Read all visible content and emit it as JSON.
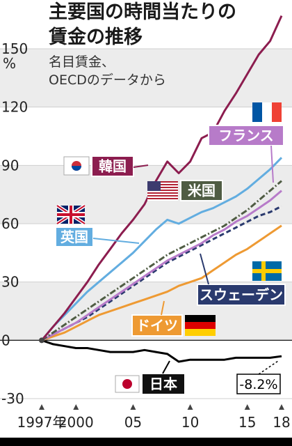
{
  "title_lines": [
    "主要国の時間当たりの",
    "賃金の推移"
  ],
  "subtitle_lines": [
    "名目賃金、",
    "OECDのデータから"
  ],
  "chart_data": {
    "type": "line",
    "ylabel": "%",
    "ylim": [
      -30,
      150
    ],
    "yticks": [
      150,
      120,
      90,
      60,
      30,
      0,
      -30
    ],
    "ytick_labels": [
      "150",
      "120",
      "90",
      "60",
      "30",
      "0",
      "-30"
    ],
    "xlim": [
      1997,
      2018
    ],
    "xtick_labels": [
      {
        "x": 1997,
        "label": "1997年"
      },
      {
        "x": 2000,
        "label": "2000"
      },
      {
        "x": 2005,
        "label": "05"
      },
      {
        "x": 2010,
        "label": "10"
      },
      {
        "x": 2015,
        "label": "15"
      },
      {
        "x": 2018,
        "label": "18"
      }
    ],
    "x": [
      1997,
      1998,
      1999,
      2000,
      2001,
      2002,
      2003,
      2004,
      2005,
      2006,
      2007,
      2008,
      2009,
      2010,
      2011,
      2012,
      2013,
      2014,
      2015,
      2016,
      2017,
      2018
    ],
    "series": [
      {
        "name": "韓国",
        "color": "#8c1d4f",
        "dash": "",
        "width": 3,
        "values": [
          0,
          7,
          14,
          22,
          30,
          39,
          47,
          55,
          62,
          70,
          82,
          92,
          86,
          92,
          104,
          107,
          118,
          127,
          137,
          147,
          154,
          167
        ]
      },
      {
        "name": "英国",
        "color": "#62ade0",
        "dash": "",
        "width": 3,
        "values": [
          0,
          7,
          13,
          19,
          25,
          30,
          35,
          40,
          45,
          51,
          57,
          62,
          60,
          63,
          66,
          68,
          71,
          74,
          78,
          83,
          88,
          94
        ]
      },
      {
        "name": "米国",
        "color": "#4f5c43",
        "dash": "9 3 2 3",
        "width": 3,
        "values": [
          0,
          4,
          8,
          12,
          16,
          20,
          24,
          28,
          32,
          36,
          40,
          44,
          47,
          50,
          53,
          56,
          59,
          63,
          67,
          72,
          77,
          82
        ]
      },
      {
        "name": "フランス",
        "color": "#b77bc9",
        "dash": "",
        "width": 3,
        "values": [
          0,
          3,
          6,
          9,
          13,
          17,
          21,
          25,
          29,
          33,
          37,
          41,
          44,
          47,
          50,
          54,
          57,
          61,
          64,
          68,
          72,
          77
        ]
      },
      {
        "name": "スウェーデン",
        "color": "#2a3a6e",
        "dash": "7 4",
        "width": 3,
        "values": [
          0,
          3,
          6,
          9,
          12,
          16,
          20,
          24,
          28,
          32,
          36,
          40,
          43,
          46,
          49,
          52,
          55,
          58,
          61,
          64,
          66,
          69
        ]
      },
      {
        "name": "ドイツ",
        "color": "#ee9a33",
        "dash": "",
        "width": 3,
        "values": [
          0,
          2,
          4,
          7,
          10,
          13,
          15,
          17,
          19,
          21,
          23,
          25,
          28,
          30,
          32,
          36,
          40,
          44,
          47,
          51,
          55,
          59
        ]
      },
      {
        "name": "日本",
        "color": "#000000",
        "dash": "",
        "width": 3,
        "values": [
          0,
          -2,
          -3,
          -4,
          -4,
          -5,
          -6,
          -6,
          -6,
          -5,
          -6,
          -7,
          -11,
          -10,
          -10,
          -10,
          -10,
          -9,
          -9,
          -9,
          -9,
          -8.2
        ]
      }
    ],
    "annotation": "-8.2%",
    "grid": true
  },
  "colors": {
    "band": "#ececec",
    "korea_label": "#8c1d4f",
    "uk_label": "#62ade0",
    "us_label": "#4f5c43",
    "france_label": "#b77bc9",
    "sweden_label": "#2a3a6e",
    "germany_label": "#ee9a33",
    "japan_label": "#111111"
  }
}
